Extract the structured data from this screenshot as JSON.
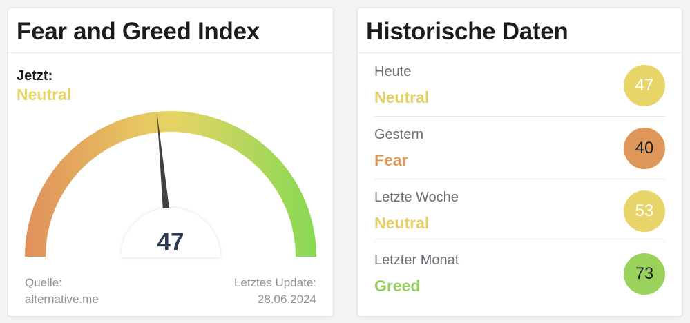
{
  "left_card": {
    "title": "Fear and Greed Index",
    "now_label": "Jetzt:",
    "now_value": "Neutral",
    "gauge": {
      "value": 47,
      "min": 0,
      "max": 100,
      "value_label": "47"
    },
    "source_label": "Quelle:",
    "source_value": "alternative.me",
    "update_label": "Letztes Update:",
    "update_value": "28.06.2024"
  },
  "right_card": {
    "title": "Historische Daten",
    "rows": [
      {
        "label": "Heute",
        "status": "Neutral",
        "value": "47",
        "status_color": "#e6cf63",
        "badge_color": "#e8d56a",
        "badge_text_color": "#ffffff"
      },
      {
        "label": "Gestern",
        "status": "Fear",
        "value": "40",
        "status_color": "#dd9a5c",
        "badge_color": "#de9758",
        "badge_text_color": "#1b1c1f"
      },
      {
        "label": "Letzte Woche",
        "status": "Neutral",
        "value": "53",
        "status_color": "#e6cf63",
        "badge_color": "#e8d56a",
        "badge_text_color": "#ffffff"
      },
      {
        "label": "Letzter Monat",
        "status": "Greed",
        "value": "73",
        "status_color": "#96d160",
        "badge_color": "#9bd25c",
        "badge_text_color": "#1b1c1f"
      }
    ]
  },
  "colors": {
    "fear": "#e0905a",
    "neutral": "#e8d464",
    "greed": "#86d954",
    "needle": "#3f4144",
    "value_text": "#2e3a52"
  }
}
